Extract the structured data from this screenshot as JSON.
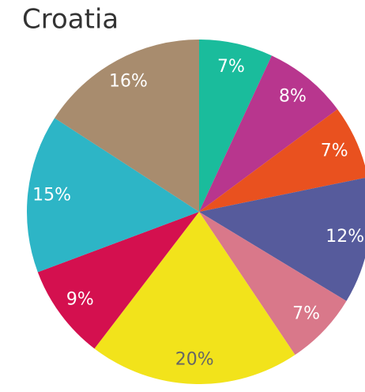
{
  "chart_data": {
    "type": "pie",
    "title": "Croatia",
    "values": [
      7,
      8,
      7,
      12,
      7,
      20,
      9,
      15,
      16
    ],
    "value_labels": [
      "7%",
      "8%",
      "7%",
      "12%",
      "7%",
      "20%",
      "9%",
      "15%",
      "16%"
    ],
    "colors": [
      "#1abc9c",
      "#b8368e",
      "#e9511f",
      "#565b9c",
      "#d9788a",
      "#f2e31b",
      "#d4104f",
      "#2db5c6",
      "#a88c6e"
    ]
  }
}
